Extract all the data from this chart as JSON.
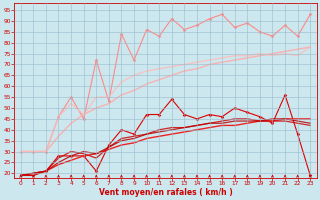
{
  "background_color": "#cce8ee",
  "grid_color": "#99bbcc",
  "xlabel": "Vent moyen/en rafales ( km/h )",
  "xlabel_color": "#cc0000",
  "tick_color": "#cc0000",
  "ylim": [
    18,
    98
  ],
  "xlim": [
    -0.5,
    23.5
  ],
  "yticks": [
    20,
    25,
    30,
    35,
    40,
    45,
    50,
    55,
    60,
    65,
    70,
    75,
    80,
    85,
    90,
    95
  ],
  "xticks": [
    0,
    1,
    2,
    3,
    4,
    5,
    6,
    7,
    8,
    9,
    10,
    11,
    12,
    13,
    14,
    15,
    16,
    17,
    18,
    19,
    20,
    21,
    22,
    23
  ],
  "series": [
    {
      "name": "pink_scatter",
      "color": "#ff8888",
      "alpha": 1.0,
      "linewidth": 0.8,
      "marker": "D",
      "markersize": 1.8,
      "y": [
        30,
        30,
        30,
        46,
        55,
        45,
        72,
        53,
        84,
        72,
        86,
        83,
        91,
        86,
        88,
        91,
        93,
        87,
        89,
        85,
        83,
        88,
        83,
        93
      ]
    },
    {
      "name": "pink_trend1",
      "color": "#ffaaaa",
      "alpha": 0.9,
      "linewidth": 1.0,
      "marker": null,
      "y": [
        30,
        30,
        30,
        37,
        43,
        47,
        50,
        52,
        56,
        58,
        61,
        63,
        65,
        67,
        68,
        70,
        71,
        72,
        73,
        74,
        75,
        76,
        77,
        78
      ]
    },
    {
      "name": "pink_trend2",
      "color": "#ffbbbb",
      "alpha": 0.85,
      "linewidth": 1.0,
      "marker": null,
      "y": [
        30,
        30,
        30,
        46,
        52,
        47,
        55,
        55,
        62,
        65,
        67,
        68,
        69,
        70,
        71,
        72,
        73,
        74,
        74,
        75,
        74,
        75,
        74,
        78
      ]
    },
    {
      "name": "red_scatter",
      "color": "#dd0000",
      "alpha": 1.0,
      "linewidth": 0.8,
      "marker": "D",
      "markersize": 1.8,
      "y": [
        19,
        19,
        21,
        28,
        28,
        28,
        21,
        33,
        40,
        38,
        47,
        47,
        54,
        47,
        45,
        47,
        46,
        50,
        48,
        46,
        43,
        56,
        38,
        19
      ]
    },
    {
      "name": "red_trend1",
      "color": "#ee2222",
      "alpha": 1.0,
      "linewidth": 1.0,
      "marker": null,
      "y": [
        19,
        20,
        21,
        24,
        26,
        28,
        29,
        31,
        33,
        34,
        36,
        37,
        38,
        39,
        40,
        41,
        42,
        42,
        43,
        44,
        44,
        45,
        45,
        45
      ]
    },
    {
      "name": "red_trend2",
      "color": "#cc1111",
      "alpha": 0.9,
      "linewidth": 0.9,
      "marker": null,
      "y": [
        19,
        20,
        21,
        27,
        30,
        29,
        27,
        32,
        36,
        37,
        38,
        40,
        41,
        41,
        42,
        43,
        44,
        45,
        45,
        44,
        44,
        44,
        43,
        42
      ]
    },
    {
      "name": "red_trend3",
      "color": "#bb0000",
      "alpha": 0.85,
      "linewidth": 0.9,
      "marker": null,
      "y": [
        19,
        20,
        21,
        25,
        28,
        30,
        29,
        32,
        35,
        36,
        38,
        39,
        40,
        41,
        42,
        43,
        43,
        44,
        44,
        44,
        45,
        45,
        44,
        43
      ]
    }
  ]
}
